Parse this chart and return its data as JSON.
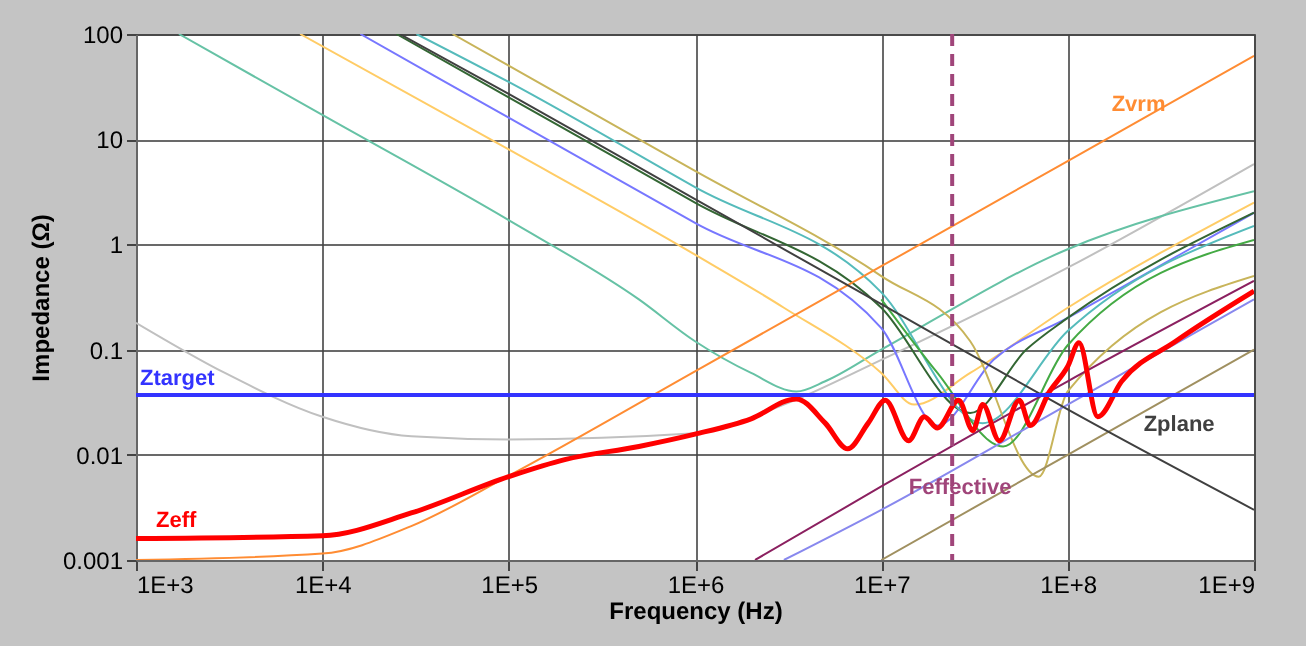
{
  "chart_data": {
    "type": "line",
    "xlabel": "Frequency (Hz)",
    "ylabel": "Impedance (Ω)",
    "log": "xy",
    "grid": true,
    "xlim": [
      1000,
      1000000000
    ],
    "ylim": [
      0.001,
      100
    ],
    "xticks": [
      {
        "value": 1000,
        "label": "1E+3"
      },
      {
        "value": 10000,
        "label": "1E+4"
      },
      {
        "value": 100000,
        "label": "1E+5"
      },
      {
        "value": 1000000,
        "label": "1E+6"
      },
      {
        "value": 10000000,
        "label": "1E+7"
      },
      {
        "value": 100000000,
        "label": "1E+8"
      },
      {
        "value": 1000000000,
        "label": "1E+9"
      }
    ],
    "yticks": [
      0.001,
      0.01,
      0.1,
      1,
      10,
      100
    ],
    "series": [
      {
        "color": "#c0c0c0",
        "x": [
          1000,
          3000,
          10000,
          30000,
          100000,
          1000000,
          3000000,
          10000000,
          100000000,
          1000000000
        ],
        "values": [
          0.18,
          0.06,
          0.023,
          0.015,
          0.014,
          0.016,
          0.03,
          0.08,
          0.6,
          5.8
        ]
      },
      {
        "color": "#66c2a5",
        "x": [
          1700,
          10000,
          100000,
          500000,
          1000000,
          2000000,
          3500000,
          5000000,
          10000000,
          100000000,
          1000000000
        ],
        "values": [
          100,
          17,
          1.7,
          0.3,
          0.12,
          0.06,
          0.04,
          0.05,
          0.1,
          0.9,
          3.2
        ]
      },
      {
        "color": "#ffcc66",
        "x": [
          7600,
          100000,
          1000000,
          3000000,
          10000000,
          15000000,
          30000000,
          100000000,
          1000000000
        ],
        "values": [
          100,
          8,
          0.8,
          0.25,
          0.06,
          0.03,
          0.06,
          0.25,
          2.5
        ]
      },
      {
        "color": "#7777ff",
        "x": [
          16000,
          100000,
          1000000,
          10000000,
          20000000,
          40000000,
          100000000,
          1000000000
        ],
        "values": [
          100,
          16,
          1.6,
          0.16,
          0.019,
          0.08,
          0.2,
          2
        ]
      },
      {
        "color": "#336633",
        "x": [
          25000,
          100000,
          1000000,
          10000000,
          30000000,
          60000000,
          100000000,
          1000000000
        ],
        "values": [
          100,
          25,
          2.5,
          0.25,
          0.025,
          0.1,
          0.2,
          2
        ]
      },
      {
        "color": "#55bbbb",
        "x": [
          32000,
          100000,
          1000000,
          10000000,
          35000000,
          100000000,
          1000000000
        ],
        "values": [
          100,
          35,
          3.5,
          0.35,
          0.02,
          0.15,
          1.5
        ]
      },
      {
        "color": "#c8b45a",
        "x": [
          50000,
          100000,
          1000000,
          10000000,
          30000000,
          70000000,
          100000000,
          1000000000
        ],
        "values": [
          100,
          50,
          5,
          0.5,
          0.12,
          0.0062,
          0.04,
          0.5
        ]
      },
      {
        "color": "#44aa44",
        "x": [
          10000000,
          20000000,
          45000000,
          100000000,
          1000000000
        ],
        "values": [
          0.3,
          0.06,
          0.012,
          0.11,
          1.1
        ]
      },
      {
        "color": "#8b2060",
        "x": [
          2100000,
          10000000,
          100000000,
          1000000000
        ],
        "values": [
          0.001,
          0.005,
          0.05,
          0.45
        ]
      },
      {
        "color": "#8888ee",
        "x": [
          3000000,
          10000000,
          100000000,
          1000000000
        ],
        "values": [
          0.001,
          0.003,
          0.03,
          0.3
        ]
      },
      {
        "color": "#a09060",
        "x": [
          10000000,
          100000000,
          1000000000
        ],
        "values": [
          0.001,
          0.01,
          0.1
        ]
      },
      {
        "name": "Zvrm",
        "color": "#ff8c33",
        "x": [
          1000,
          10000,
          30000,
          100000,
          1000000,
          10000000,
          100000000,
          1000000000
        ],
        "values": [
          0.001,
          0.00115,
          0.0021,
          0.0063,
          0.062,
          0.62,
          6.2,
          62
        ]
      },
      {
        "name": "Zplane",
        "color": "#404040",
        "x": [
          26000,
          100000,
          1000000,
          10000000,
          30000000,
          100000000,
          1000000000
        ],
        "values": [
          100,
          27,
          2.7,
          0.27,
          0.09,
          0.027,
          0.003
        ]
      },
      {
        "name": "Zeff",
        "color": "#ff0000",
        "x": [
          1000,
          10000,
          30000,
          100000,
          200000,
          500000,
          1000000,
          2000000,
          3500000,
          5000000,
          6600000,
          8500000,
          10500000,
          14000000,
          17000000,
          20000000,
          26000000,
          31000000,
          35000000,
          43000000,
          55000000,
          63000000,
          80000000,
          100000000,
          115000000,
          145000000,
          195000000,
          380000000,
          1000000000
        ],
        "values": [
          0.0016,
          0.0017,
          0.0028,
          0.0062,
          0.009,
          0.012,
          0.0157,
          0.022,
          0.034,
          0.02,
          0.0114,
          0.02,
          0.033,
          0.0136,
          0.023,
          0.018,
          0.033,
          0.017,
          0.03,
          0.0136,
          0.033,
          0.019,
          0.04,
          0.069,
          0.116,
          0.023,
          0.05,
          0.12,
          0.36
        ]
      }
    ],
    "ref_lines": [
      {
        "axis": "y",
        "value": 0.037,
        "label": "Ztarget",
        "color": "#3333ff"
      },
      {
        "axis": "x",
        "value": 24000000,
        "label": "Feffective",
        "color": "#a0457a",
        "line_style": "dashed"
      }
    ]
  }
}
